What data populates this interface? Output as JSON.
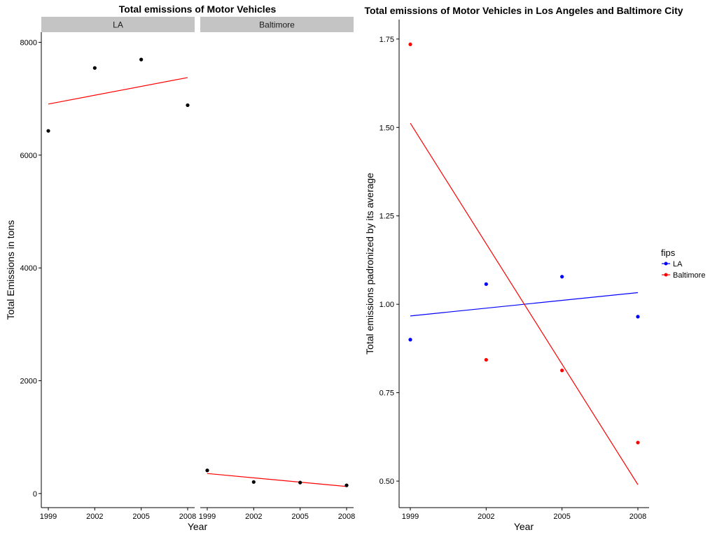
{
  "chart_data": [
    {
      "type": "scatter",
      "title": "Total emissions of Motor Vehicles",
      "xlabel": "Year",
      "ylabel": "Total Emissions in tons",
      "grid": false,
      "ylim": [
        -250,
        8180
      ],
      "yticks": [
        0,
        2000,
        4000,
        6000,
        8000
      ],
      "xticks": [
        1999,
        2002,
        2005,
        2008
      ],
      "point_color": "#000000",
      "trend_color": "#ff0000",
      "facets": [
        {
          "strip_label": "LA",
          "x": [
            1999,
            2002,
            2005,
            2008
          ],
          "y": [
            6430,
            7545,
            7695,
            6885
          ],
          "trend": {
            "x": [
              1999,
              2008
            ],
            "y": [
              6905,
              7375
            ]
          }
        },
        {
          "strip_label": "Baltimore",
          "x": [
            1999,
            2002,
            2005,
            2008
          ],
          "y": [
            410,
            205,
            195,
            145
          ],
          "trend": {
            "x": [
              1999,
              2008
            ],
            "y": [
              355,
              125
            ]
          }
        }
      ]
    },
    {
      "type": "scatter",
      "title": "Total emissions of Motor Vehicles in Los Angeles and Baltimore City",
      "xlabel": "Year",
      "ylabel": "Total emissions padronized by its average",
      "grid": false,
      "ylim": [
        0.425,
        1.805
      ],
      "yticks": [
        "0.50",
        "0.75",
        "1.00",
        "1.25",
        "1.50",
        "1.75"
      ],
      "xticks": [
        1999,
        2002,
        2005,
        2008
      ],
      "legend": {
        "title": "fips",
        "position": "right"
      },
      "series": [
        {
          "name": "LA",
          "color": "#0000ff",
          "x": [
            1999,
            2002,
            2005,
            2008
          ],
          "y": [
            0.9,
            1.057,
            1.078,
            0.965
          ],
          "trend": {
            "x": [
              1999,
              2008
            ],
            "y": [
              0.967,
              1.033
            ]
          }
        },
        {
          "name": "Baltimore",
          "color": "#ff0000",
          "x": [
            1999,
            2002,
            2005,
            2008
          ],
          "y": [
            1.735,
            0.843,
            0.813,
            0.609
          ],
          "trend": {
            "x": [
              1999,
              2008
            ],
            "y": [
              1.512,
              0.49
            ]
          }
        }
      ]
    }
  ]
}
